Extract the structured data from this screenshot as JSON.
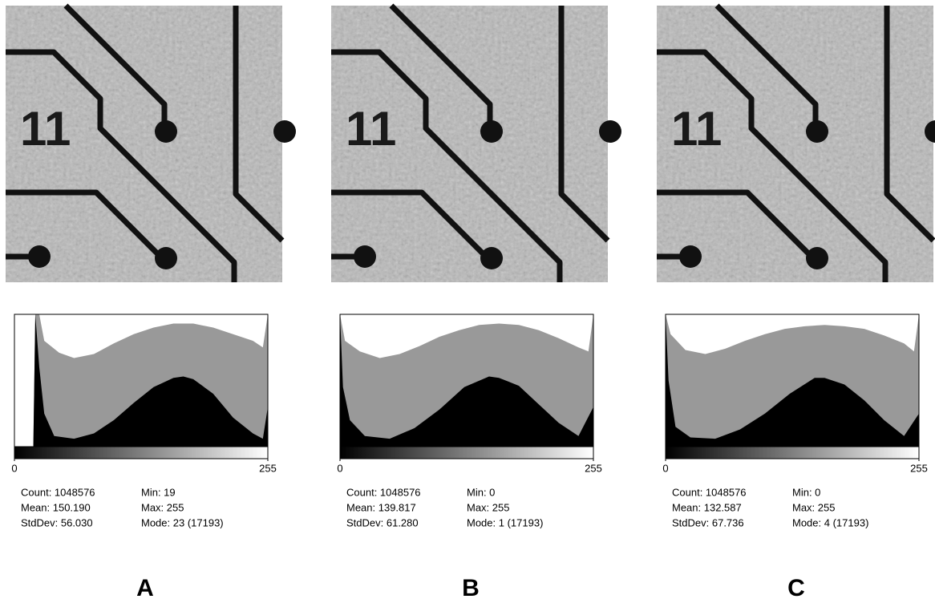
{
  "panels": [
    {
      "label": "A",
      "image_text": "11",
      "histogram": {
        "type": "area",
        "xlim": [
          0,
          255
        ],
        "xticks": [
          0,
          255
        ],
        "ylim": [
          0,
          100
        ],
        "series": [
          {
            "color": "#999999",
            "x": [
              19,
              21,
              25,
              30,
              45,
              60,
              80,
              100,
              120,
              140,
              160,
              180,
              200,
              220,
              240,
              250,
              255
            ],
            "values": [
              0,
              100,
              100,
              80,
              71,
              67,
              70,
              78,
              85,
              90,
              93,
              93,
              90,
              85,
              80,
              75,
              100
            ]
          },
          {
            "color": "#000000",
            "x": [
              19,
              21,
              25,
              30,
              40,
              60,
              80,
              100,
              120,
              140,
              160,
              170,
              180,
              200,
              220,
              240,
              250,
              255
            ],
            "values": [
              0,
              100,
              60,
              25,
              8,
              6,
              10,
              20,
              33,
              45,
              52,
              53,
              51,
              40,
              22,
              10,
              6,
              30
            ]
          }
        ]
      },
      "stats": [
        [
          "Count: 1048576",
          "Mean: 150.190",
          "StdDev: 56.030"
        ],
        [
          "Min: 19",
          "Max: 255",
          "Mode: 23 (17193)"
        ]
      ]
    },
    {
      "label": "B",
      "image_text": "11",
      "histogram": {
        "type": "area",
        "xlim": [
          0,
          255
        ],
        "xticks": [
          0,
          255
        ],
        "ylim": [
          0,
          100
        ],
        "series": [
          {
            "color": "#999999",
            "x": [
              0,
              5,
              20,
              40,
              60,
              80,
              100,
              120,
              140,
              160,
              180,
              200,
              220,
              240,
              250,
              255
            ],
            "values": [
              100,
              80,
              72,
              67,
              70,
              76,
              83,
              88,
              92,
              93,
              92,
              88,
              82,
              75,
              72,
              100
            ]
          },
          {
            "color": "#000000",
            "x": [
              0,
              3,
              10,
              25,
              50,
              75,
              100,
              125,
              150,
              160,
              180,
              200,
              220,
              240,
              255
            ],
            "values": [
              100,
              45,
              20,
              8,
              6,
              14,
              28,
              45,
              53,
              52,
              46,
              32,
              18,
              8,
              30
            ]
          }
        ]
      },
      "stats": [
        [
          "Count: 1048576",
          "Mean: 139.817",
          "StdDev: 61.280"
        ],
        [
          "Min: 0",
          "Max: 255",
          "Mode: 1 (17193)"
        ]
      ]
    },
    {
      "label": "C",
      "image_text": "11",
      "histogram": {
        "type": "area",
        "xlim": [
          0,
          255
        ],
        "xticks": [
          0,
          255
        ],
        "ylim": [
          0,
          100
        ],
        "series": [
          {
            "color": "#999999",
            "x": [
              0,
              5,
              20,
              40,
              60,
              80,
              100,
              120,
              140,
              160,
              180,
              200,
              220,
              240,
              250,
              255
            ],
            "values": [
              100,
              85,
              73,
              70,
              74,
              80,
              85,
              89,
              91,
              92,
              91,
              89,
              84,
              78,
              72,
              100
            ]
          },
          {
            "color": "#000000",
            "x": [
              0,
              3,
              10,
              25,
              50,
              75,
              100,
              125,
              150,
              160,
              180,
              200,
              220,
              240,
              255
            ],
            "values": [
              100,
              50,
              15,
              7,
              6,
              13,
              25,
              40,
              52,
              52,
              47,
              35,
              20,
              8,
              25
            ]
          }
        ]
      },
      "stats": [
        [
          "Count: 1048576",
          "Mean: 132.587",
          "StdDev: 67.736"
        ],
        [
          "Min: 0",
          "Max: 255",
          "Mode: 4 (17193)"
        ]
      ]
    }
  ]
}
